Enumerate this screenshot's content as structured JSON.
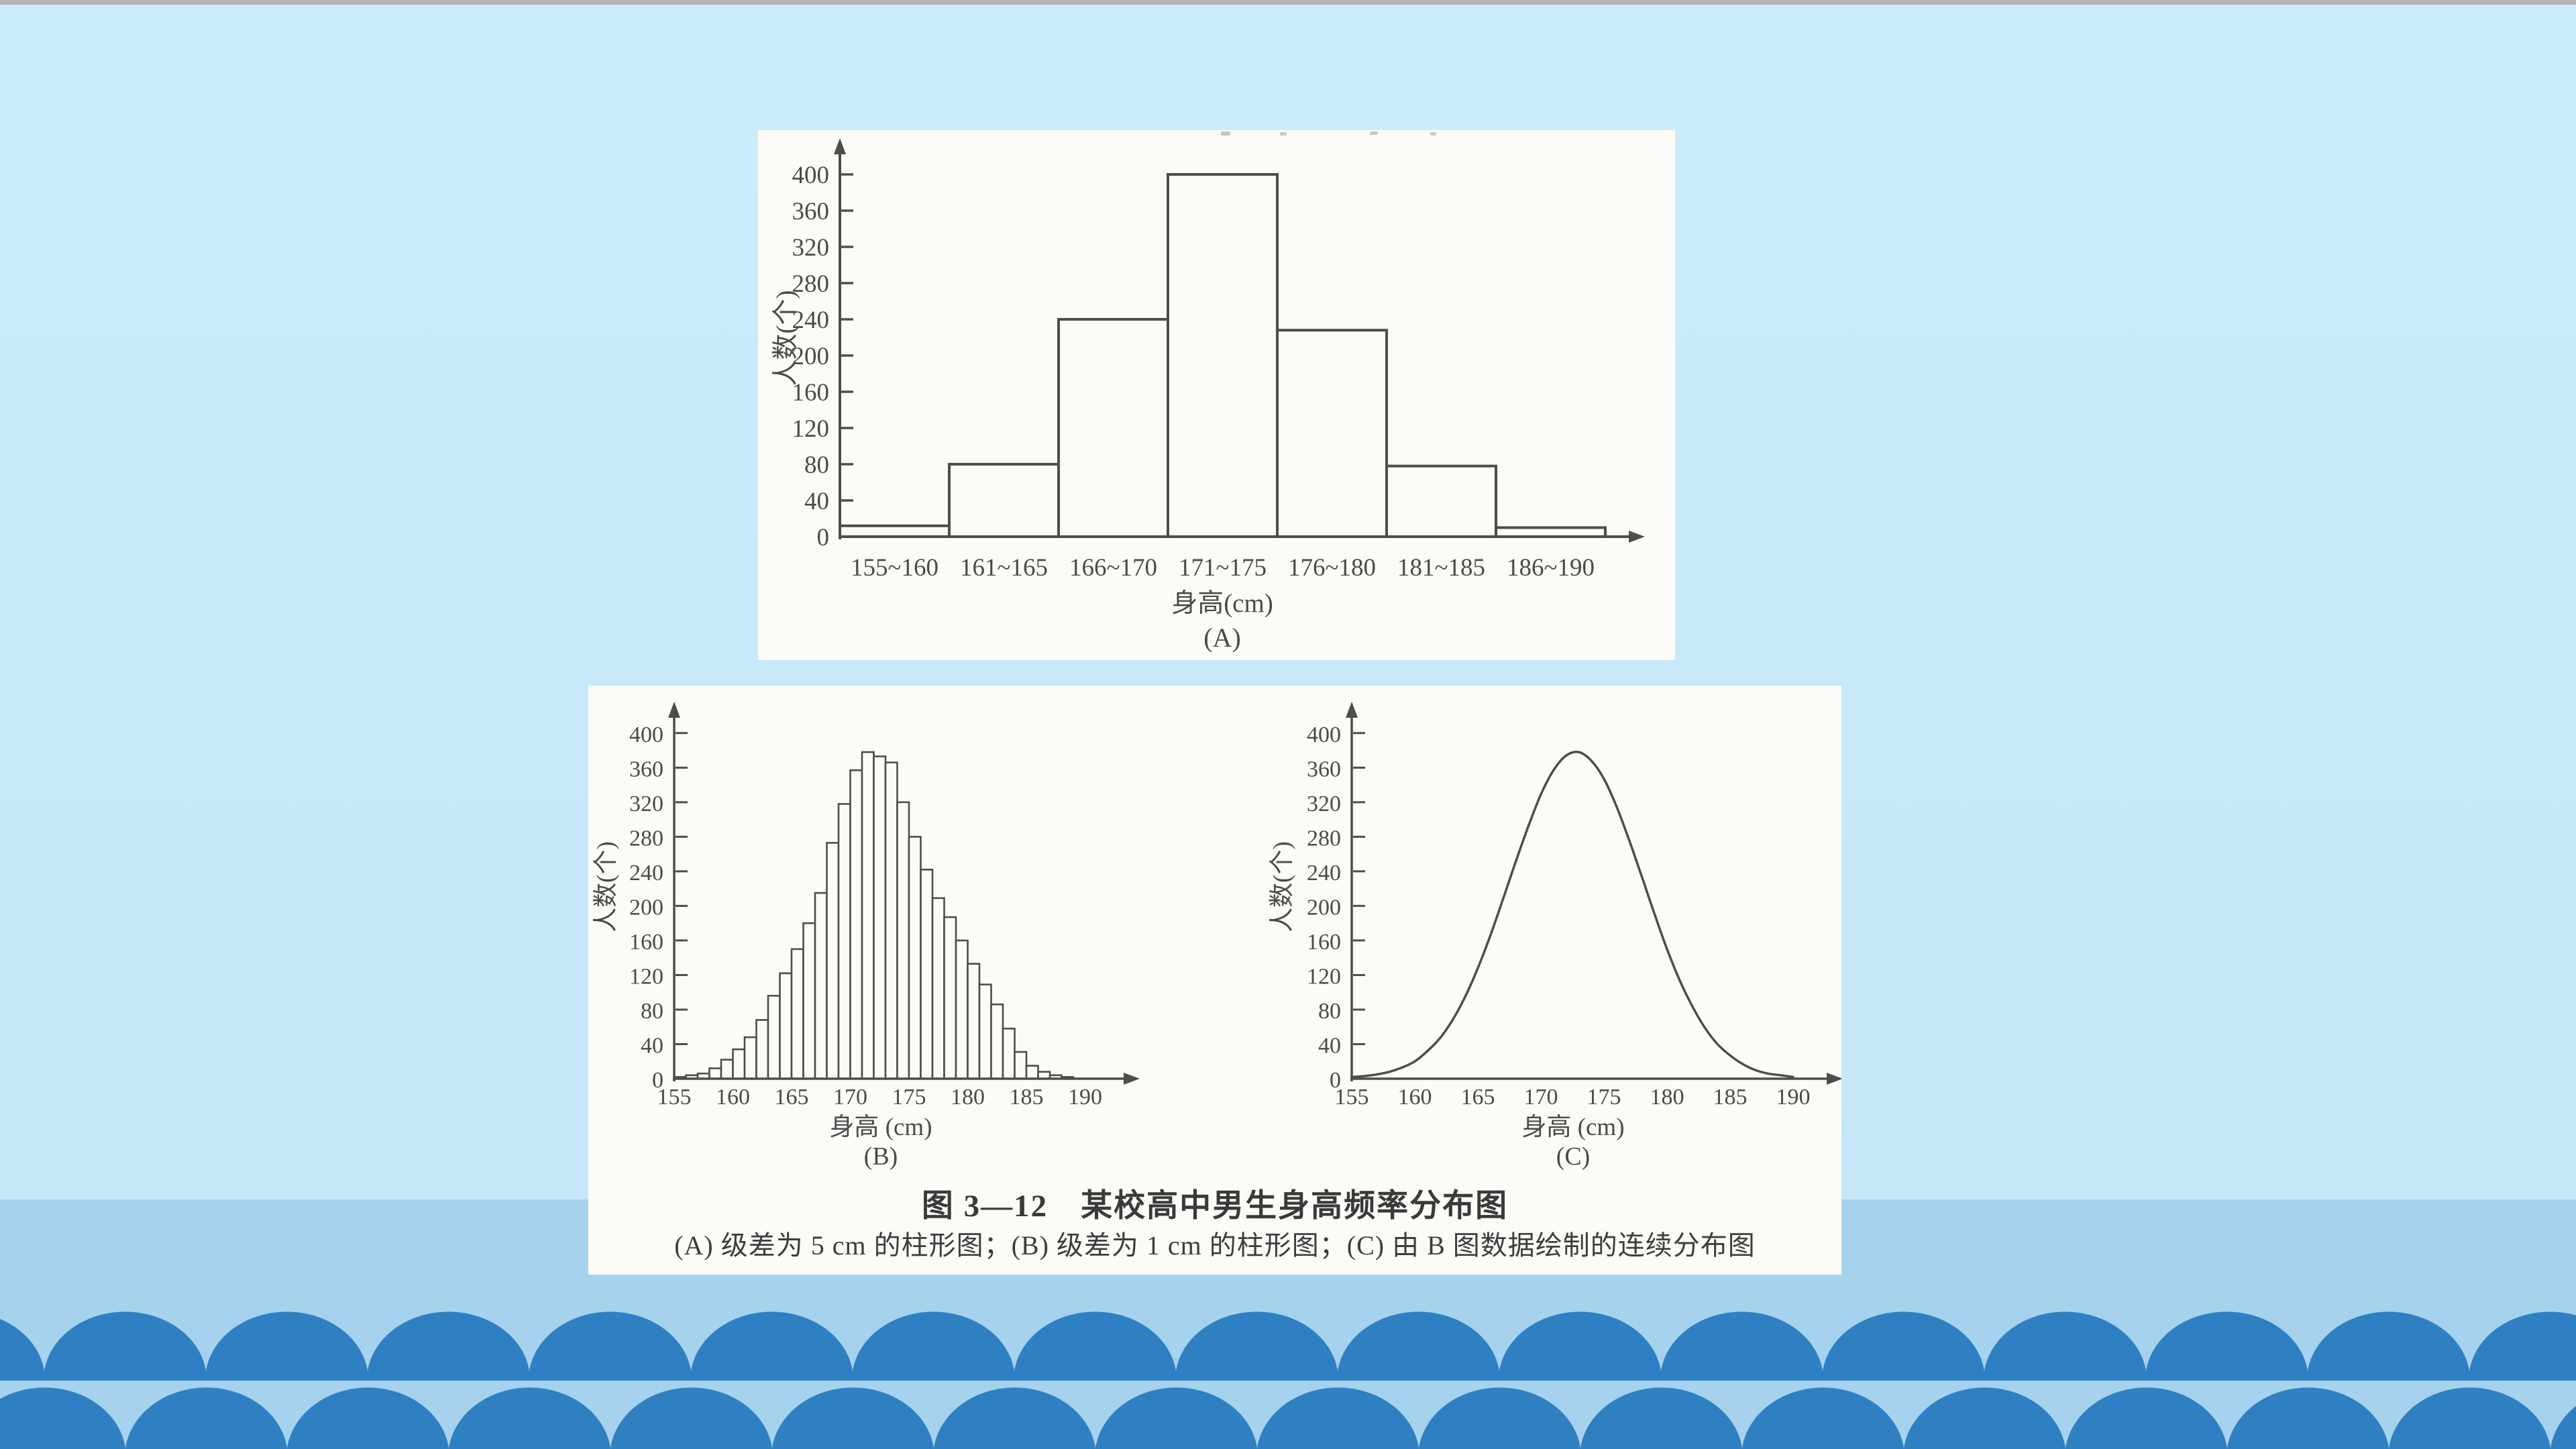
{
  "page": {
    "background_top": "#cdecfb",
    "background_bottom": "#c3e6f8",
    "band_color": "#a6d2ee",
    "scallop_color": "#2f80c3",
    "topbar_color": "#b6b6b6",
    "panel_color": "#fcfbf7",
    "ink_color": "#4d4d4d"
  },
  "figure": {
    "caption_title": "图  3—12　某校高中男生身高频率分布图",
    "caption_sub": "(A) 级差为 5 cm 的柱形图；(B) 级差为 1 cm 的柱形图；(C) 由 B 图数据绘制的连续分布图"
  },
  "chart_data": [
    {
      "id": "A",
      "type": "bar",
      "title": "(A)",
      "xlabel": "身高(cm)",
      "ylabel": "人数(个)",
      "categories": [
        "155~160",
        "161~165",
        "166~170",
        "171~175",
        "176~180",
        "181~185",
        "186~190"
      ],
      "values": [
        12,
        80,
        240,
        400,
        228,
        78,
        10
      ],
      "y_ticks": [
        0,
        40,
        80,
        120,
        160,
        200,
        240,
        280,
        320,
        360,
        400
      ],
      "ylim": [
        0,
        430
      ],
      "grid": false,
      "legend": "none"
    },
    {
      "id": "B",
      "type": "bar",
      "title": "(B)",
      "xlabel": "身高 (cm)",
      "ylabel": "人数(个)",
      "bin_start": 155,
      "bin_width_cm": 1,
      "values": [
        2,
        4,
        6,
        12,
        22,
        34,
        48,
        68,
        96,
        122,
        150,
        180,
        215,
        273,
        318,
        357,
        378,
        373,
        366,
        320,
        280,
        242,
        209,
        187,
        160,
        133,
        109,
        86,
        58,
        31,
        15,
        8,
        4,
        2
      ],
      "x_ticks": [
        155,
        160,
        165,
        170,
        175,
        180,
        185,
        190
      ],
      "y_ticks": [
        0,
        40,
        80,
        120,
        160,
        200,
        240,
        280,
        320,
        360,
        400
      ],
      "xlim": [
        155,
        193
      ],
      "ylim": [
        0,
        430
      ],
      "grid": false,
      "legend": "none"
    },
    {
      "id": "C",
      "type": "line",
      "title": "(C)",
      "xlabel": "身高 (cm)",
      "ylabel": "人数(个)",
      "x_ticks": [
        155,
        160,
        165,
        170,
        175,
        180,
        185,
        190
      ],
      "y_ticks": [
        0,
        40,
        80,
        120,
        160,
        200,
        240,
        280,
        320,
        360,
        400
      ],
      "xlim": [
        155,
        193
      ],
      "ylim": [
        0,
        430
      ],
      "grid": false,
      "legend": "none",
      "curve_points": [
        [
          155,
          2
        ],
        [
          156,
          3
        ],
        [
          157,
          5
        ],
        [
          158,
          8
        ],
        [
          159,
          13
        ],
        [
          160,
          20
        ],
        [
          161,
          32
        ],
        [
          162,
          47
        ],
        [
          163,
          68
        ],
        [
          164,
          95
        ],
        [
          165,
          128
        ],
        [
          166,
          166
        ],
        [
          167,
          208
        ],
        [
          168,
          251
        ],
        [
          169,
          292
        ],
        [
          170,
          329
        ],
        [
          171,
          357
        ],
        [
          172,
          374
        ],
        [
          173,
          378
        ],
        [
          174,
          368
        ],
        [
          175,
          347
        ],
        [
          176,
          315
        ],
        [
          177,
          276
        ],
        [
          178,
          234
        ],
        [
          179,
          191
        ],
        [
          180,
          150
        ],
        [
          181,
          114
        ],
        [
          182,
          84
        ],
        [
          183,
          59
        ],
        [
          184,
          40
        ],
        [
          185,
          27
        ],
        [
          186,
          17
        ],
        [
          187,
          10
        ],
        [
          188,
          6
        ],
        [
          189,
          4
        ],
        [
          190,
          2
        ]
      ]
    }
  ]
}
